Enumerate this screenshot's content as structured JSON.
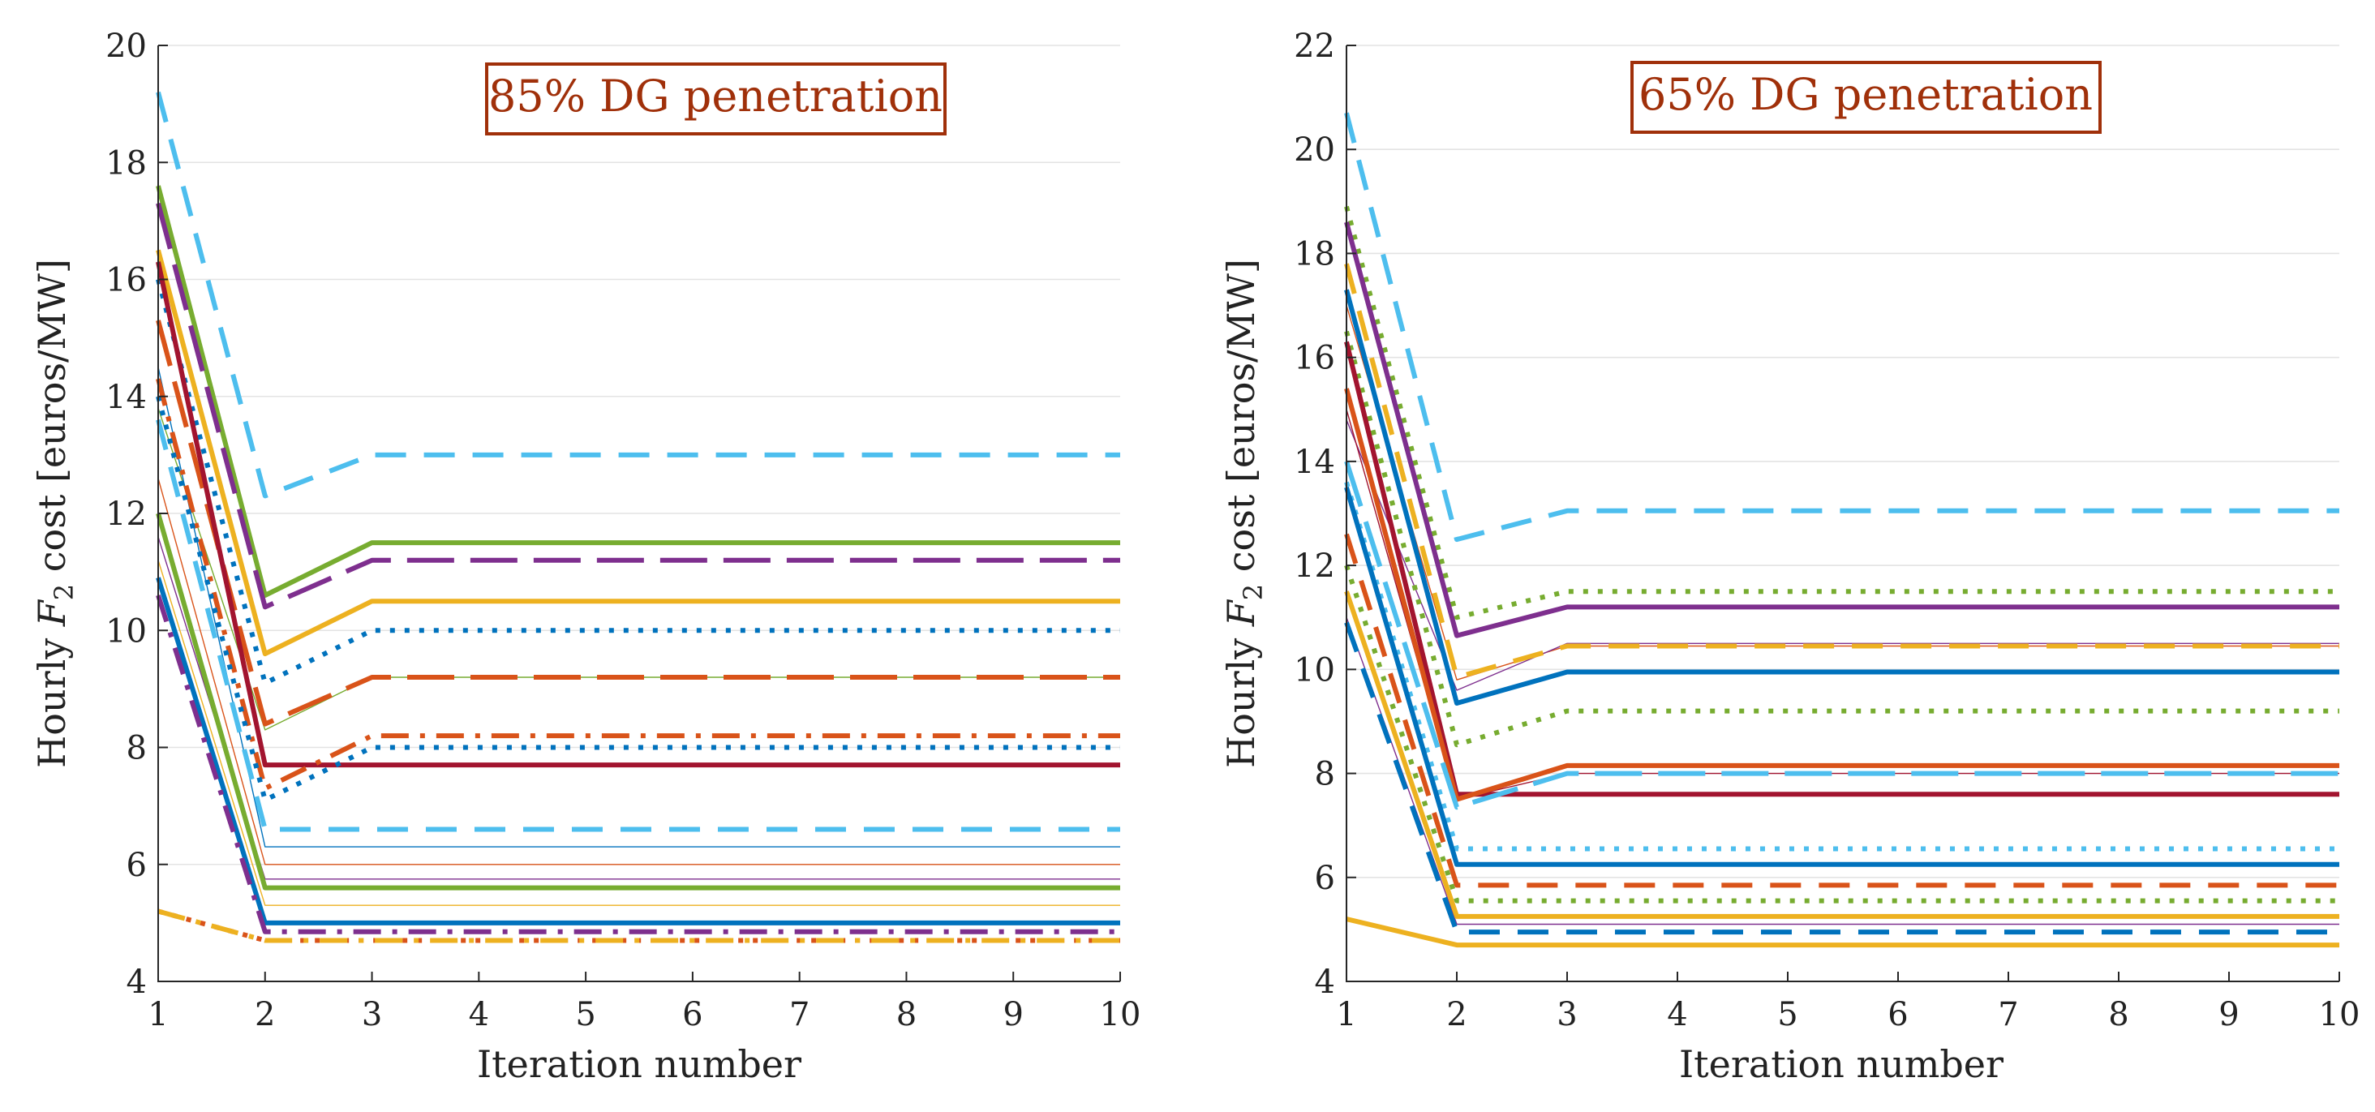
{
  "colors": {
    "blue": "#0072BD",
    "orange": "#D95319",
    "yellow": "#EDB120",
    "purple": "#7E2F8E",
    "green": "#77AC30",
    "cyan": "#4DBEEE",
    "red": "#A2142F",
    "annotation": "#A0300A"
  },
  "chart_data": [
    {
      "type": "line",
      "annotation": "85% DG penetration",
      "xlabel": "Iteration number",
      "ylabel_parts": [
        "Hourly ",
        "F",
        "2",
        " cost [euros/MW]"
      ],
      "x": [
        1,
        2,
        3,
        4,
        5,
        6,
        7,
        8,
        9,
        10
      ],
      "xlim": [
        1,
        10
      ],
      "ylim": [
        4,
        20
      ],
      "xticks": [
        "1",
        "2",
        "3",
        "4",
        "5",
        "6",
        "7",
        "8",
        "9",
        "10"
      ],
      "yticks": [
        "4",
        "6",
        "8",
        "10",
        "12",
        "14",
        "16",
        "18",
        "20"
      ],
      "grid": "horizontal",
      "series": [
        {
          "name": "s1",
          "color": "cyan",
          "style": "dash",
          "width": 6,
          "v1": 19.2,
          "v2": 12.3,
          "v3": 13.0
        },
        {
          "name": "s2",
          "color": "green",
          "style": "solid",
          "width": 6,
          "v1": 17.6,
          "v2": 10.6,
          "v3": 11.5
        },
        {
          "name": "s3",
          "color": "purple",
          "style": "longdash",
          "width": 6,
          "v1": 17.3,
          "v2": 10.4,
          "v3": 11.2
        },
        {
          "name": "s4",
          "color": "yellow",
          "style": "solid",
          "width": 6,
          "v1": 16.5,
          "v2": 9.6,
          "v3": 10.5
        },
        {
          "name": "s5",
          "color": "blue",
          "style": "dot",
          "width": 6,
          "v1": 16.0,
          "v2": 9.1,
          "v3": 10.0
        },
        {
          "name": "s6",
          "color": "orange",
          "style": "longdash",
          "width": 6,
          "v1": 15.3,
          "v2": 8.4,
          "v3": 9.2
        },
        {
          "name": "s7",
          "color": "red",
          "style": "solid",
          "width": 6,
          "v1": 16.3,
          "v2": 7.7,
          "v3": 7.7
        },
        {
          "name": "s8",
          "color": "orange",
          "style": "dashdot",
          "width": 6,
          "v1": 14.3,
          "v2": 7.3,
          "v3": 8.2
        },
        {
          "name": "s9",
          "color": "blue",
          "style": "dot",
          "width": 6,
          "v1": 14.0,
          "v2": 7.1,
          "v3": 8.0
        },
        {
          "name": "s10",
          "color": "cyan",
          "style": "dash",
          "width": 6,
          "v1": 13.6,
          "v2": 6.6,
          "v3": 6.6
        },
        {
          "name": "s11",
          "color": "green",
          "style": "solid",
          "width": 6,
          "v1": 12.0,
          "v2": 5.6,
          "v3": 5.6
        },
        {
          "name": "s12",
          "color": "blue",
          "style": "solid",
          "width": 6,
          "v1": 10.9,
          "v2": 5.0,
          "v3": 5.0
        },
        {
          "name": "s13",
          "color": "purple",
          "style": "dashdot",
          "width": 6,
          "v1": 10.6,
          "v2": 4.85,
          "v3": 4.85
        },
        {
          "name": "s14",
          "color": "orange",
          "style": "dot",
          "width": 6,
          "v1": 5.2,
          "v2": 4.7,
          "v3": 4.7
        },
        {
          "name": "s15",
          "color": "yellow",
          "style": "dashdot",
          "width": 6,
          "v1": 5.2,
          "v2": 4.7,
          "v3": 4.7
        },
        {
          "name": "t1",
          "color": "green",
          "style": "solid",
          "width": 1.4,
          "v1": 13.8,
          "v2": 8.3,
          "v3": 9.2
        },
        {
          "name": "t2",
          "color": "blue",
          "style": "solid",
          "width": 1.4,
          "v1": 14.5,
          "v2": 6.3,
          "v3": 6.3
        },
        {
          "name": "t3",
          "color": "orange",
          "style": "solid",
          "width": 1.4,
          "v1": 12.6,
          "v2": 6.0,
          "v3": 6.0
        },
        {
          "name": "t4",
          "color": "purple",
          "style": "solid",
          "width": 1.4,
          "v1": 11.6,
          "v2": 5.75,
          "v3": 5.75
        },
        {
          "name": "t5",
          "color": "yellow",
          "style": "solid",
          "width": 1.4,
          "v1": 11.2,
          "v2": 5.3,
          "v3": 5.3
        }
      ]
    },
    {
      "type": "line",
      "annotation": "65% DG penetration",
      "xlabel": "Iteration number",
      "ylabel_parts": [
        "Hourly ",
        "F",
        "2",
        " cost [euros/MW]"
      ],
      "x": [
        1,
        2,
        3,
        4,
        5,
        6,
        7,
        8,
        9,
        10
      ],
      "xlim": [
        1,
        10
      ],
      "ylim": [
        4,
        22
      ],
      "xticks": [
        "1",
        "2",
        "3",
        "4",
        "5",
        "6",
        "7",
        "8",
        "9",
        "10"
      ],
      "yticks": [
        "4",
        "6",
        "8",
        "10",
        "12",
        "14",
        "16",
        "18",
        "20",
        "22"
      ],
      "grid": "horizontal",
      "series": [
        {
          "name": "s1",
          "color": "cyan",
          "style": "dash",
          "width": 6,
          "v1": 20.7,
          "v2": 12.5,
          "v3": 13.05
        },
        {
          "name": "s2",
          "color": "green",
          "style": "dot",
          "width": 6,
          "v1": 18.9,
          "v2": 11.0,
          "v3": 11.5
        },
        {
          "name": "s3",
          "color": "purple",
          "style": "solid",
          "width": 6,
          "v1": 18.6,
          "v2": 10.65,
          "v3": 11.2
        },
        {
          "name": "s4",
          "color": "yellow",
          "style": "dash",
          "width": 6,
          "v1": 17.8,
          "v2": 9.85,
          "v3": 10.45
        },
        {
          "name": "s5",
          "color": "blue",
          "style": "solid",
          "width": 6,
          "v1": 17.3,
          "v2": 9.35,
          "v3": 9.95
        },
        {
          "name": "s6",
          "color": "green",
          "style": "dot",
          "width": 6,
          "v1": 16.5,
          "v2": 8.55,
          "v3": 9.2
        },
        {
          "name": "s7",
          "color": "red",
          "style": "solid",
          "width": 6,
          "v1": 16.3,
          "v2": 7.6,
          "v3": 7.6
        },
        {
          "name": "s8",
          "color": "orange",
          "style": "solid",
          "width": 6,
          "v1": 15.4,
          "v2": 7.5,
          "v3": 8.15
        },
        {
          "name": "s9",
          "color": "cyan",
          "style": "longdash",
          "width": 6,
          "v1": 14.0,
          "v2": 7.35,
          "v3": 8.0
        },
        {
          "name": "s10",
          "color": "cyan",
          "style": "dot",
          "width": 6,
          "v1": 13.6,
          "v2": 6.55,
          "v3": 6.55
        },
        {
          "name": "s11",
          "color": "blue",
          "style": "solid",
          "width": 6,
          "v1": 13.5,
          "v2": 6.25,
          "v3": 6.25
        },
        {
          "name": "s12",
          "color": "orange",
          "style": "dash",
          "width": 6,
          "v1": 12.6,
          "v2": 5.85,
          "v3": 5.85
        },
        {
          "name": "s13",
          "color": "green",
          "style": "dot",
          "width": 6,
          "v1": 12.0,
          "v2": 5.55,
          "v3": 5.55
        },
        {
          "name": "s14",
          "color": "yellow",
          "style": "solid",
          "width": 6,
          "v1": 11.5,
          "v2": 5.25,
          "v3": 5.25
        },
        {
          "name": "s15",
          "color": "blue",
          "style": "dash",
          "width": 6,
          "v1": 10.9,
          "v2": 4.95,
          "v3": 4.95
        },
        {
          "name": "s16",
          "color": "yellow",
          "style": "solid",
          "width": 6,
          "v1": 5.2,
          "v2": 4.7,
          "v3": 4.7
        },
        {
          "name": "t1",
          "color": "orange",
          "style": "solid",
          "width": 1.4,
          "v1": 17.0,
          "v2": 9.8,
          "v3": 10.45
        },
        {
          "name": "t2",
          "color": "purple",
          "style": "solid",
          "width": 1.4,
          "v1": 14.8,
          "v2": 9.6,
          "v3": 10.5
        },
        {
          "name": "t3",
          "color": "red",
          "style": "solid",
          "width": 1.4,
          "v1": 15.0,
          "v2": 7.5,
          "v3": 8.0
        },
        {
          "name": "t4",
          "color": "purple",
          "style": "solid",
          "width": 1.4,
          "v1": 11.0,
          "v2": 5.1,
          "v3": 5.1
        }
      ]
    }
  ]
}
